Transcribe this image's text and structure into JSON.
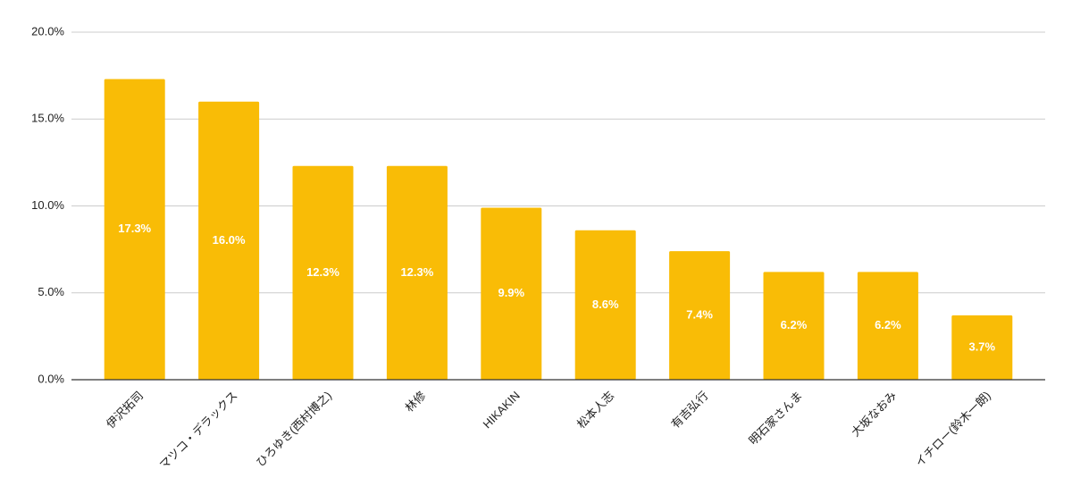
{
  "chart_data": {
    "type": "bar",
    "categories": [
      "伊沢拓司",
      "マツコ・デラックス",
      "ひろゆき(西村博之)",
      "林修",
      "HIKAKIN",
      "松本人志",
      "有吉弘行",
      "明石家さんま",
      "大坂なおみ",
      "イチロー(鈴木一朗)"
    ],
    "values": [
      17.3,
      16.0,
      12.3,
      12.3,
      9.9,
      8.6,
      7.4,
      6.2,
      6.2,
      3.7
    ],
    "value_labels": [
      "17.3%",
      "16.0%",
      "12.3%",
      "12.3%",
      "9.9%",
      "8.6%",
      "7.4%",
      "6.2%",
      "6.2%",
      "3.7%"
    ],
    "color": "#f9bc06",
    "ylim": [
      0,
      20
    ],
    "yticks": [
      {
        "value": 0,
        "label": "0.0%"
      },
      {
        "value": 5,
        "label": "5.0%"
      },
      {
        "value": 10,
        "label": "10.0%"
      },
      {
        "value": 15,
        "label": "15.0%"
      },
      {
        "value": 20,
        "label": "20.0%"
      }
    ],
    "grid": true
  }
}
